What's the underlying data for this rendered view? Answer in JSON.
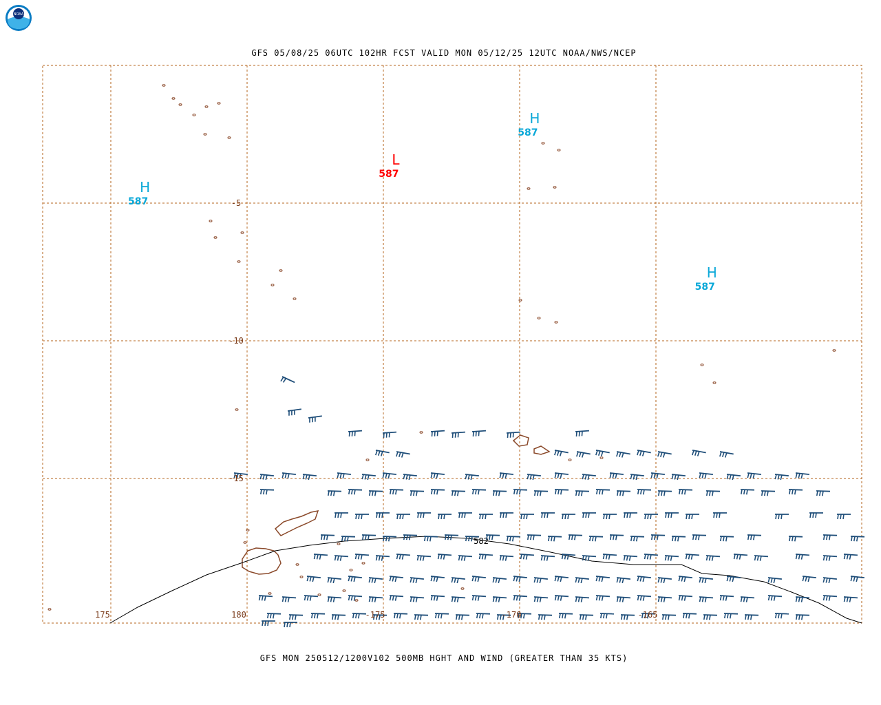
{
  "header": {
    "title": "GFS 05/08/25 06UTC 102HR FCST VALID MON 05/12/25 12UTC NOAA/NWS/NCEP",
    "logo_text": "NOAA"
  },
  "footer": {
    "caption": "GFS MON 250512/1200V102 500MB HGHT AND WIND (GREATER THAN 35 KTS)"
  },
  "map": {
    "lat_labels": [
      {
        "text": "-5",
        "lat": -5
      },
      {
        "text": "-10",
        "lat": -10
      },
      {
        "text": "-15",
        "lat": -15
      }
    ],
    "lon_labels": [
      {
        "text": "175",
        "lon": 175
      },
      {
        "text": "180",
        "lon": 180
      },
      {
        "text": "-175",
        "lon": 185
      },
      {
        "text": "-170",
        "lon": 190
      },
      {
        "text": "-165",
        "lon": 195
      }
    ],
    "pressure_systems": [
      {
        "type": "H",
        "value": "587",
        "lon": 176.0,
        "lat": -4.6,
        "color": "#0aa8d8"
      },
      {
        "type": "L",
        "value": "587",
        "lon": 185.2,
        "lat": -3.6,
        "color": "#ff0000"
      },
      {
        "type": "H",
        "value": "587",
        "lon": 190.3,
        "lat": -2.1,
        "color": "#0aa8d8"
      },
      {
        "type": "H",
        "value": "587",
        "lon": 196.8,
        "lat": -7.7,
        "color": "#0aa8d8"
      }
    ],
    "contour": {
      "label": "582"
    },
    "colors": {
      "grid": "#b5651d",
      "coast": "#8b4a2b",
      "wind": "#1f4e79",
      "contour": "#000000"
    }
  }
}
